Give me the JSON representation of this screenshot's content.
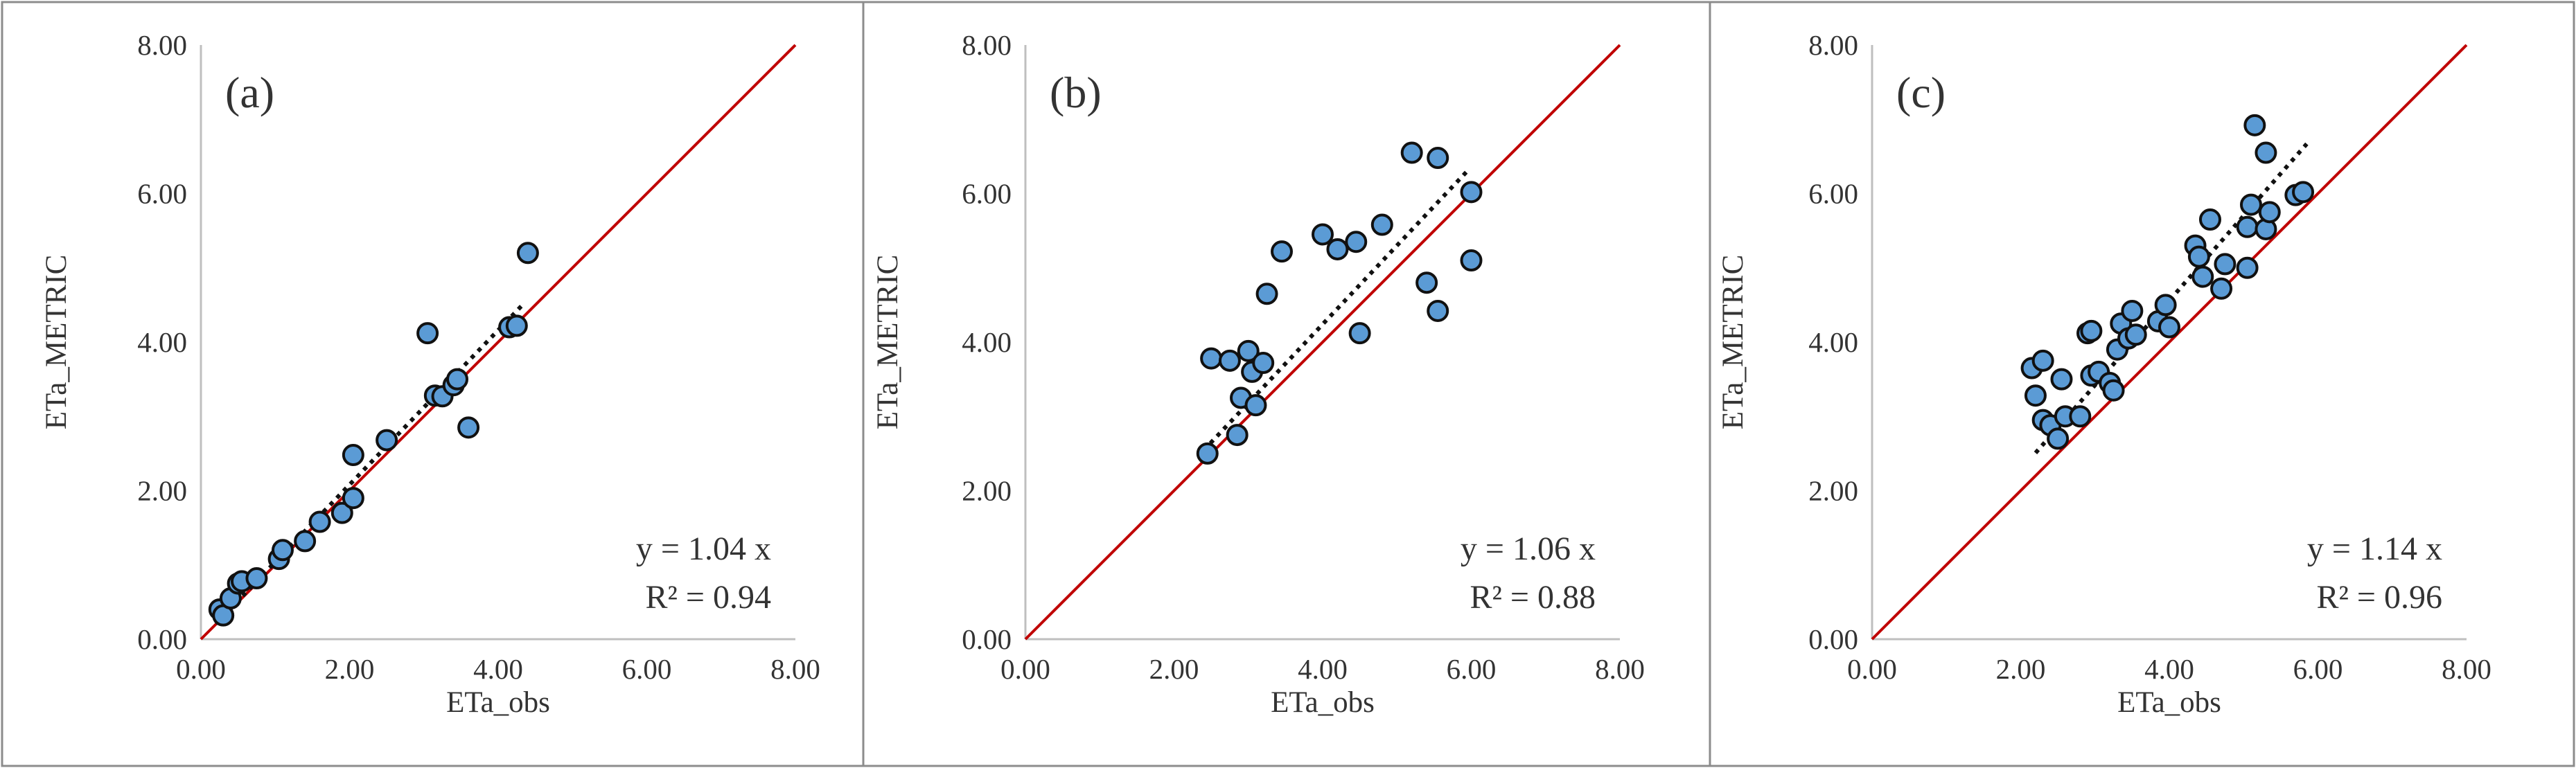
{
  "colors": {
    "marker_fill": "#5b9bd5",
    "marker_edge": "#111111",
    "identity_line": "#c00000",
    "trend_line": "#111111",
    "axis": "#bfbfbf",
    "frame": "#8c8c8c",
    "text": "#333333"
  },
  "chart_data": [
    {
      "type": "scatter",
      "panel_label": "(a)",
      "xlabel": "ETa_obs",
      "ylabel": "ETa_METRIC",
      "xlim": [
        0,
        8
      ],
      "ylim": [
        0,
        8
      ],
      "x_ticks": [
        "0.00",
        "2.00",
        "4.00",
        "6.00",
        "8.00"
      ],
      "y_ticks": [
        "0.00",
        "2.00",
        "4.00",
        "6.00",
        "8.00"
      ],
      "equation": "y = 1.04 x",
      "r2": "R² = 0.94",
      "identity_line": [
        0,
        8
      ],
      "trend": {
        "slope": 1.04,
        "x_range": [
          0.2,
          4.35
        ]
      },
      "points": [
        [
          0.25,
          0.4
        ],
        [
          0.3,
          0.32
        ],
        [
          0.4,
          0.55
        ],
        [
          0.5,
          0.75
        ],
        [
          0.55,
          0.78
        ],
        [
          0.75,
          0.82
        ],
        [
          1.05,
          1.08
        ],
        [
          1.1,
          1.2
        ],
        [
          1.4,
          1.32
        ],
        [
          1.6,
          1.58
        ],
        [
          1.9,
          1.7
        ],
        [
          2.05,
          2.48
        ],
        [
          2.05,
          1.9
        ],
        [
          2.5,
          2.68
        ],
        [
          3.05,
          4.12
        ],
        [
          3.15,
          3.28
        ],
        [
          3.25,
          3.27
        ],
        [
          3.4,
          3.42
        ],
        [
          3.45,
          3.5
        ],
        [
          3.6,
          2.85
        ],
        [
          4.15,
          4.2
        ],
        [
          4.25,
          4.22
        ],
        [
          4.4,
          5.2
        ]
      ]
    },
    {
      "type": "scatter",
      "panel_label": "(b)",
      "xlabel": "ETa_obs",
      "ylabel": "ETa_METRIC",
      "xlim": [
        0,
        8
      ],
      "ylim": [
        0,
        8
      ],
      "x_ticks": [
        "0.00",
        "2.00",
        "4.00",
        "6.00",
        "8.00"
      ],
      "y_ticks": [
        "0.00",
        "2.00",
        "4.00",
        "6.00",
        "8.00"
      ],
      "equation": "y = 1.06 x",
      "r2": "R² = 0.88",
      "identity_line": [
        0,
        8
      ],
      "trend": {
        "slope": 1.06,
        "x_range": [
          2.4,
          5.95
        ]
      },
      "points": [
        [
          2.45,
          2.5
        ],
        [
          2.5,
          3.78
        ],
        [
          2.75,
          3.75
        ],
        [
          2.85,
          2.75
        ],
        [
          2.9,
          3.25
        ],
        [
          3.0,
          3.88
        ],
        [
          3.05,
          3.6
        ],
        [
          3.1,
          3.15
        ],
        [
          3.2,
          3.72
        ],
        [
          3.25,
          4.65
        ],
        [
          3.45,
          5.22
        ],
        [
          4.0,
          5.45
        ],
        [
          4.2,
          5.25
        ],
        [
          4.45,
          5.35
        ],
        [
          4.5,
          4.12
        ],
        [
          4.8,
          5.58
        ],
        [
          5.2,
          6.55
        ],
        [
          5.4,
          4.8
        ],
        [
          5.55,
          4.42
        ],
        [
          5.55,
          6.48
        ],
        [
          6.0,
          6.02
        ],
        [
          6.0,
          5.1
        ]
      ]
    },
    {
      "type": "scatter",
      "panel_label": "(c)",
      "xlabel": "ETa_obs",
      "ylabel": "ETa_METRIC",
      "xlim": [
        0,
        8
      ],
      "ylim": [
        0,
        8
      ],
      "x_ticks": [
        "0.00",
        "2.00",
        "4.00",
        "6.00",
        "8.00"
      ],
      "y_ticks": [
        "0.00",
        "2.00",
        "4.00",
        "6.00",
        "8.00"
      ],
      "equation": "y = 1.14 x",
      "r2": "R² = 0.96",
      "identity_line": [
        0,
        8
      ],
      "trend": {
        "slope": 1.14,
        "x_range": [
          2.2,
          5.85
        ]
      },
      "points": [
        [
          2.15,
          3.65
        ],
        [
          2.2,
          3.28
        ],
        [
          2.3,
          3.75
        ],
        [
          2.3,
          2.95
        ],
        [
          2.4,
          2.88
        ],
        [
          2.5,
          2.7
        ],
        [
          2.55,
          3.5
        ],
        [
          2.6,
          3.0
        ],
        [
          2.8,
          3.0
        ],
        [
          2.9,
          4.12
        ],
        [
          2.95,
          4.15
        ],
        [
          2.95,
          3.55
        ],
        [
          3.05,
          3.6
        ],
        [
          3.2,
          3.45
        ],
        [
          3.25,
          3.35
        ],
        [
          3.3,
          3.9
        ],
        [
          3.35,
          4.25
        ],
        [
          3.45,
          4.05
        ],
        [
          3.5,
          4.42
        ],
        [
          3.55,
          4.1
        ],
        [
          3.85,
          4.28
        ],
        [
          3.95,
          4.5
        ],
        [
          4.0,
          4.2
        ],
        [
          4.35,
          5.3
        ],
        [
          4.4,
          5.15
        ],
        [
          4.45,
          4.88
        ],
        [
          4.55,
          5.65
        ],
        [
          4.7,
          4.72
        ],
        [
          4.75,
          5.05
        ],
        [
          5.05,
          5.0
        ],
        [
          5.05,
          5.55
        ],
        [
          5.1,
          5.85
        ],
        [
          5.15,
          6.92
        ],
        [
          5.3,
          6.55
        ],
        [
          5.3,
          5.52
        ],
        [
          5.35,
          5.75
        ],
        [
          5.7,
          5.98
        ],
        [
          5.8,
          6.02
        ]
      ]
    }
  ]
}
